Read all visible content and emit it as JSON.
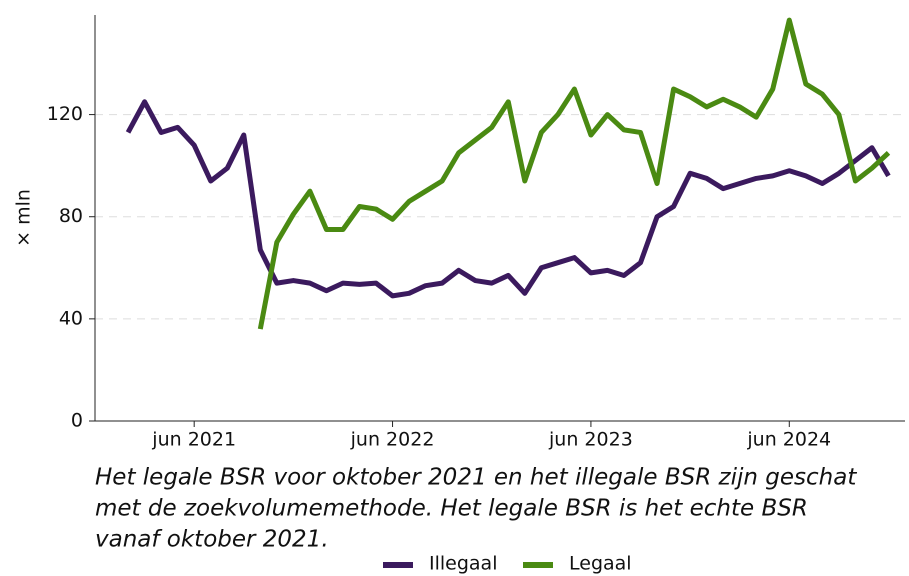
{
  "chart_data": {
    "type": "line",
    "y_label": "× mln",
    "caption": [
      "Het legale BSR voor oktober 2021 en het illegale BSR zijn geschat",
      "met de zoekvolumemethode. Het legale BSR is het echte BSR",
      "vanaf oktober 2021."
    ],
    "x": [
      "2021-02",
      "2021-03",
      "2021-04",
      "2021-05",
      "2021-06",
      "2021-07",
      "2021-08",
      "2021-09",
      "2021-10",
      "2021-11",
      "2021-12",
      "2022-01",
      "2022-02",
      "2022-03",
      "2022-04",
      "2022-05",
      "2022-06",
      "2022-07",
      "2022-08",
      "2022-09",
      "2022-10",
      "2022-11",
      "2022-12",
      "2023-01",
      "2023-02",
      "2023-03",
      "2023-04",
      "2023-05",
      "2023-06",
      "2023-07",
      "2023-08",
      "2023-09",
      "2023-10",
      "2023-11",
      "2023-12",
      "2024-01",
      "2024-02",
      "2024-03",
      "2024-04",
      "2024-05",
      "2024-06",
      "2024-07",
      "2024-08",
      "2024-09",
      "2024-10",
      "2024-11",
      "2024-12"
    ],
    "series": [
      {
        "name": "Illegaal",
        "color": "#3b1a5e",
        "values": [
          113,
          125,
          113,
          115,
          108,
          94,
          99,
          112,
          67,
          54,
          55,
          54,
          51,
          54,
          53.5,
          54,
          49,
          50,
          53,
          54,
          59,
          55,
          54,
          57,
          50,
          60,
          62,
          64,
          58,
          59,
          57,
          62,
          80,
          84,
          97,
          95,
          91,
          93,
          95,
          96,
          98,
          96,
          93,
          97,
          102,
          107,
          96
        ]
      },
      {
        "name": "Legaal",
        "color": "#4a8a12",
        "values": [
          null,
          null,
          null,
          null,
          null,
          null,
          null,
          null,
          36,
          70,
          81,
          90,
          75,
          75,
          84,
          83,
          79,
          86,
          90,
          94,
          105,
          110,
          115,
          125,
          94,
          113,
          120,
          130,
          112,
          120,
          114,
          113,
          93,
          130,
          127,
          123,
          126,
          123,
          119,
          130,
          157,
          132,
          128,
          120,
          94,
          99,
          105
        ]
      }
    ],
    "xlim": [
      "2020-12",
      "2025-01"
    ],
    "xticks": [
      {
        "value": "2021-06",
        "label": "jun 2021"
      },
      {
        "value": "2022-06",
        "label": "jun 2022"
      },
      {
        "value": "2023-06",
        "label": "jun 2023"
      },
      {
        "value": "2024-06",
        "label": "jun 2024"
      }
    ],
    "ylim": [
      0,
      159
    ],
    "yticks": [
      0,
      40,
      80,
      120
    ],
    "grid": true,
    "legend": "bottom"
  }
}
